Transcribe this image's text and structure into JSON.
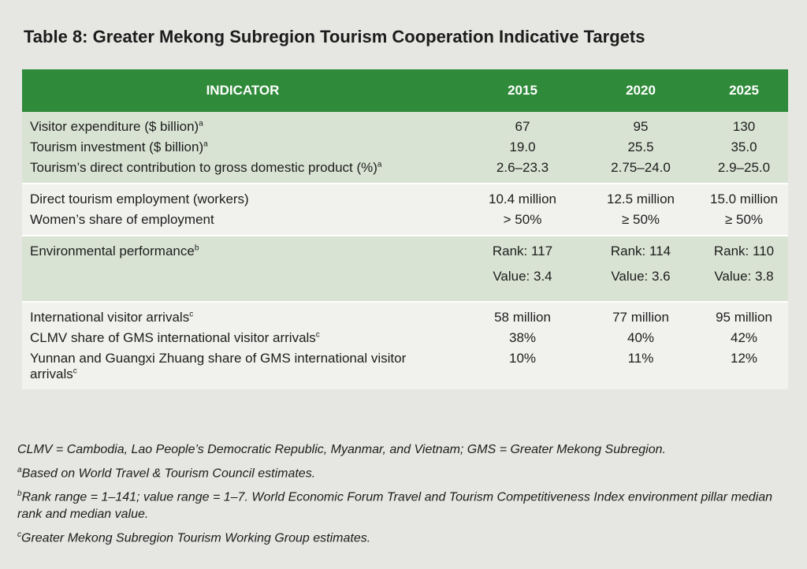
{
  "title": "Table 8: Greater Mekong Subregion Tourism Cooperation Indicative Targets",
  "table": {
    "header": [
      "INDICATOR",
      "2015",
      "2020",
      "2025"
    ],
    "groups": [
      {
        "rows": [
          {
            "label": "Visitor expenditure ($ billion)",
            "note": "a",
            "values": [
              "67",
              "95",
              "130"
            ]
          },
          {
            "label": "Tourism investment ($ billion)",
            "note": "a",
            "values": [
              "19.0",
              "25.5",
              "35.0"
            ]
          },
          {
            "label": "Tourism’s direct contribution to gross domestic product (%)",
            "note": "a",
            "values": [
              "2.6–23.3",
              "2.75–24.0",
              "2.9–25.0"
            ]
          }
        ]
      },
      {
        "rows": [
          {
            "label": "Direct tourism employment (workers)",
            "values": [
              "10.4 million",
              "12.5 million",
              "15.0 million"
            ]
          },
          {
            "label": "Women’s share of employment",
            "values": [
              "> 50%",
              "≥ 50%",
              "≥ 50%"
            ]
          }
        ]
      },
      {
        "rows": [
          {
            "label": "Environmental performance",
            "note": "b",
            "values": [
              [
                "Rank: 117",
                "Value: 3.4"
              ],
              [
                "Rank: 114",
                "Value: 3.6"
              ],
              [
                "Rank: 110",
                "Value: 3.8"
              ]
            ]
          }
        ]
      },
      {
        "rows": [
          {
            "label": "International visitor arrivals",
            "note": "c",
            "values": [
              "58 million",
              "77 million",
              "95 million"
            ]
          },
          {
            "label": "CLMV share of GMS international visitor arrivals",
            "note": "c",
            "values": [
              "38%",
              "40%",
              "42%"
            ]
          },
          {
            "label": "Yunnan and Guangxi Zhuang share of GMS international visitor arrivals",
            "note": "c",
            "values": [
              "10%",
              "11%",
              "12%"
            ]
          }
        ]
      }
    ]
  },
  "footnotes": {
    "abbreviations": "CLMV = Cambodia, Lao People’s Democratic Republic, Myanmar, and Vietnam; GMS = Greater Mekong Subregion.",
    "notes": [
      {
        "mark": "a",
        "text": "Based on World Travel & Tourism Council estimates."
      },
      {
        "mark": "b",
        "text": "Rank range = 1–141; value range = 1–7. World Economic Forum Travel and Tourism Competitiveness Index environment pillar median rank and median value."
      },
      {
        "mark": "c",
        "text": "Greater Mekong Subregion Tourism Working Group estimates."
      }
    ]
  }
}
